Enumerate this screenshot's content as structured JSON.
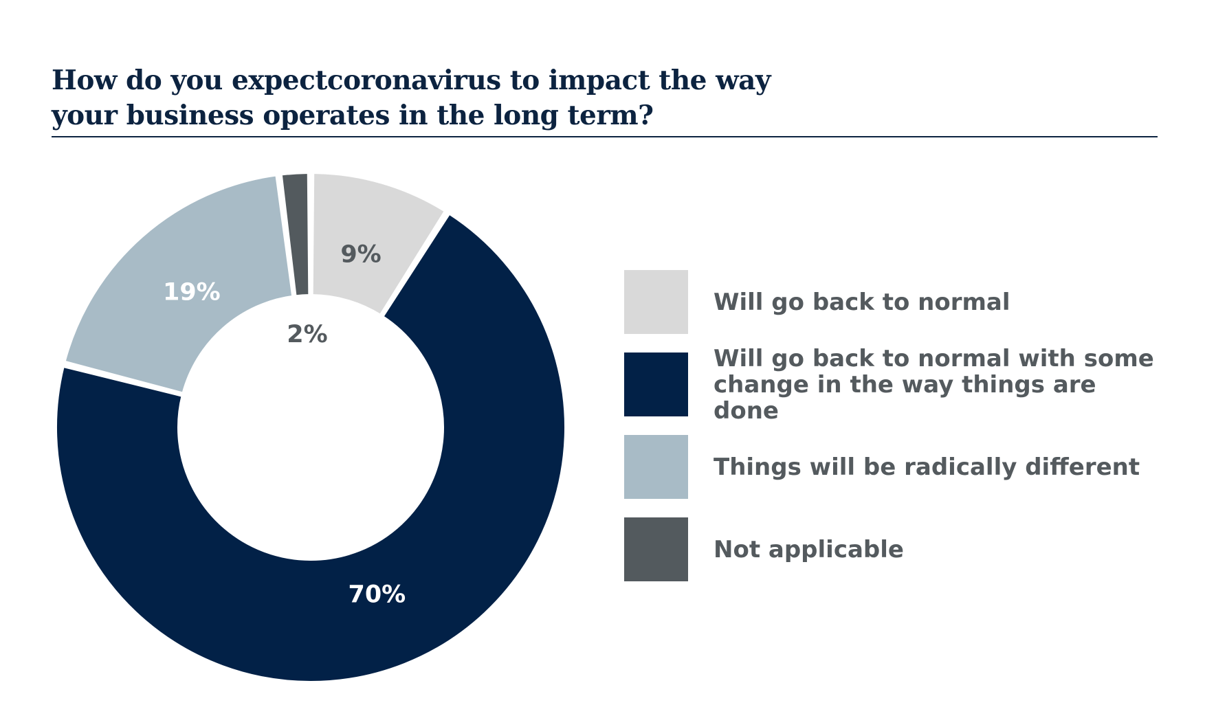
{
  "title_lines": [
    "How do you expectcoronavirus to impact the way",
    "your business operates in the long term?"
  ],
  "colors": {
    "title": "#0c2340",
    "rule": "#0c2340",
    "legend_text": "#545a5e"
  },
  "chart_data": {
    "type": "pie",
    "variant": "donut",
    "title": "How do you expectcoronavirus to impact the way your business operates in the long term?",
    "legend_placement": "right",
    "slices": [
      {
        "label": "Will go back to normal",
        "value": 9,
        "display": "9%",
        "color": "#d9d9d9",
        "label_color": "#545a5e"
      },
      {
        "label": "Will go back to normal with some change in the way things are done",
        "value": 70,
        "display": "70%",
        "color": "#022147",
        "label_color": "#ffffff"
      },
      {
        "label": "Things will be radically different",
        "value": 19,
        "display": "19%",
        "color": "#a8bbc6",
        "label_color": "#ffffff"
      },
      {
        "label": "Not applicable",
        "value": 2,
        "display": "2%",
        "color": "#535a5e",
        "label_color": "#545a5e"
      }
    ],
    "legend": [
      {
        "lines": [
          "Will go back to normal"
        ],
        "color": "#d9d9d9"
      },
      {
        "lines": [
          "Will go back to normal with some",
          "change in the way things are done"
        ],
        "color": "#022147"
      },
      {
        "lines": [
          "Things will be radically different"
        ],
        "color": "#a8bbc6"
      },
      {
        "lines": [
          "Not applicable"
        ],
        "color": "#535a5e"
      }
    ]
  }
}
